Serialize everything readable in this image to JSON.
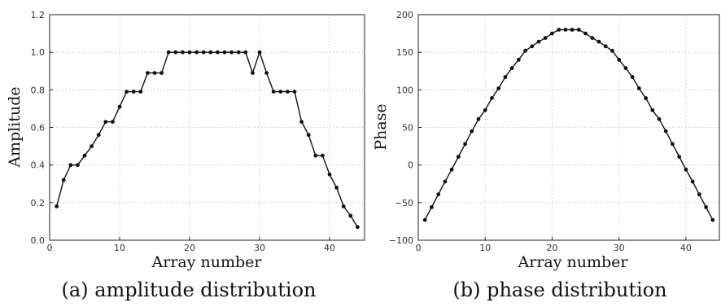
{
  "chart_data": [
    {
      "type": "line",
      "caption": "(a) amplitude distribution",
      "xlabel": "Array number",
      "ylabel": "Amplitude",
      "xlim": [
        0,
        45
      ],
      "ylim": [
        0,
        1.2
      ],
      "xticks": [
        "0",
        "10",
        "20",
        "30",
        "40"
      ],
      "yticks": [
        "0.0",
        "0.2",
        "0.4",
        "0.6",
        "0.8",
        "1.0",
        "1.2"
      ],
      "grid": true,
      "x": [
        1,
        2,
        3,
        4,
        5,
        6,
        7,
        8,
        9,
        10,
        11,
        12,
        13,
        14,
        15,
        16,
        17,
        18,
        19,
        20,
        21,
        22,
        23,
        24,
        25,
        26,
        27,
        28,
        29,
        30,
        31,
        32,
        33,
        34,
        35,
        36,
        37,
        38,
        39,
        40,
        41,
        42,
        43,
        44
      ],
      "y": [
        0.18,
        0.32,
        0.4,
        0.4,
        0.45,
        0.5,
        0.56,
        0.63,
        0.63,
        0.71,
        0.79,
        0.79,
        0.79,
        0.89,
        0.89,
        0.89,
        1.0,
        1.0,
        1.0,
        1.0,
        1.0,
        1.0,
        1.0,
        1.0,
        1.0,
        1.0,
        1.0,
        1.0,
        0.89,
        1.0,
        0.89,
        0.79,
        0.79,
        0.79,
        0.79,
        0.63,
        0.56,
        0.45,
        0.45,
        0.35,
        0.28,
        0.18,
        0.13,
        0.07
      ]
    },
    {
      "type": "line",
      "caption": "(b) phase distribution",
      "xlabel": "Array number",
      "ylabel": "Phase",
      "xlim": [
        0,
        45
      ],
      "ylim": [
        -100,
        200
      ],
      "xticks": [
        "0",
        "10",
        "20",
        "30",
        "40"
      ],
      "yticks": [
        "−100",
        "−50",
        "0",
        "50",
        "100",
        "150",
        "200"
      ],
      "grid": true,
      "x": [
        1,
        2,
        3,
        4,
        5,
        6,
        7,
        8,
        9,
        10,
        11,
        12,
        13,
        14,
        15,
        16,
        17,
        18,
        19,
        20,
        21,
        22,
        23,
        24,
        25,
        26,
        27,
        28,
        29,
        30,
        31,
        32,
        33,
        34,
        35,
        36,
        37,
        38,
        39,
        40,
        41,
        42,
        43,
        44
      ],
      "y": [
        -73,
        -56,
        -39,
        -22,
        -6,
        11,
        28,
        45,
        61,
        73,
        89,
        102,
        117,
        129,
        140,
        152,
        158,
        164,
        169,
        175,
        180,
        180,
        180,
        180,
        175,
        169,
        164,
        158,
        152,
        140,
        129,
        117,
        102,
        89,
        73,
        61,
        45,
        28,
        11,
        -6,
        -22,
        -39,
        -56,
        -73
      ]
    }
  ]
}
